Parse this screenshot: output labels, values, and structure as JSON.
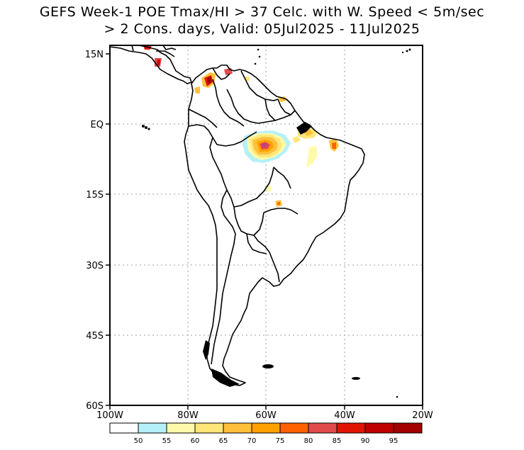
{
  "title": {
    "line1": "GEFS Week-1 POE Tmax/HI > 37 Celc. with W. Speed < 5m/sec",
    "line2": "> 2 Cons. days, Valid: 05Jul2025 - 11Jul2025"
  },
  "map": {
    "lat_labels": [
      "15N",
      "EQ",
      "15S",
      "30S",
      "45S",
      "60S"
    ],
    "lon_labels": [
      "100W",
      "80W",
      "60W",
      "40W",
      "20W"
    ],
    "grid_lines": "dotted"
  },
  "colorbar": {
    "labels": [
      "50",
      "55",
      "60",
      "65",
      "70",
      "75",
      "80",
      "85",
      "90",
      "95"
    ],
    "colors": [
      "#ffffff",
      "#b4f0fa",
      "#fffaaa",
      "#ffe678",
      "#ffc03c",
      "#ffa000",
      "#ff6000",
      "#e14b4b",
      "#e11400",
      "#c00000",
      "#a50000"
    ]
  },
  "colors": {
    "coast": "#000000",
    "grid": "#b4b4b4"
  }
}
